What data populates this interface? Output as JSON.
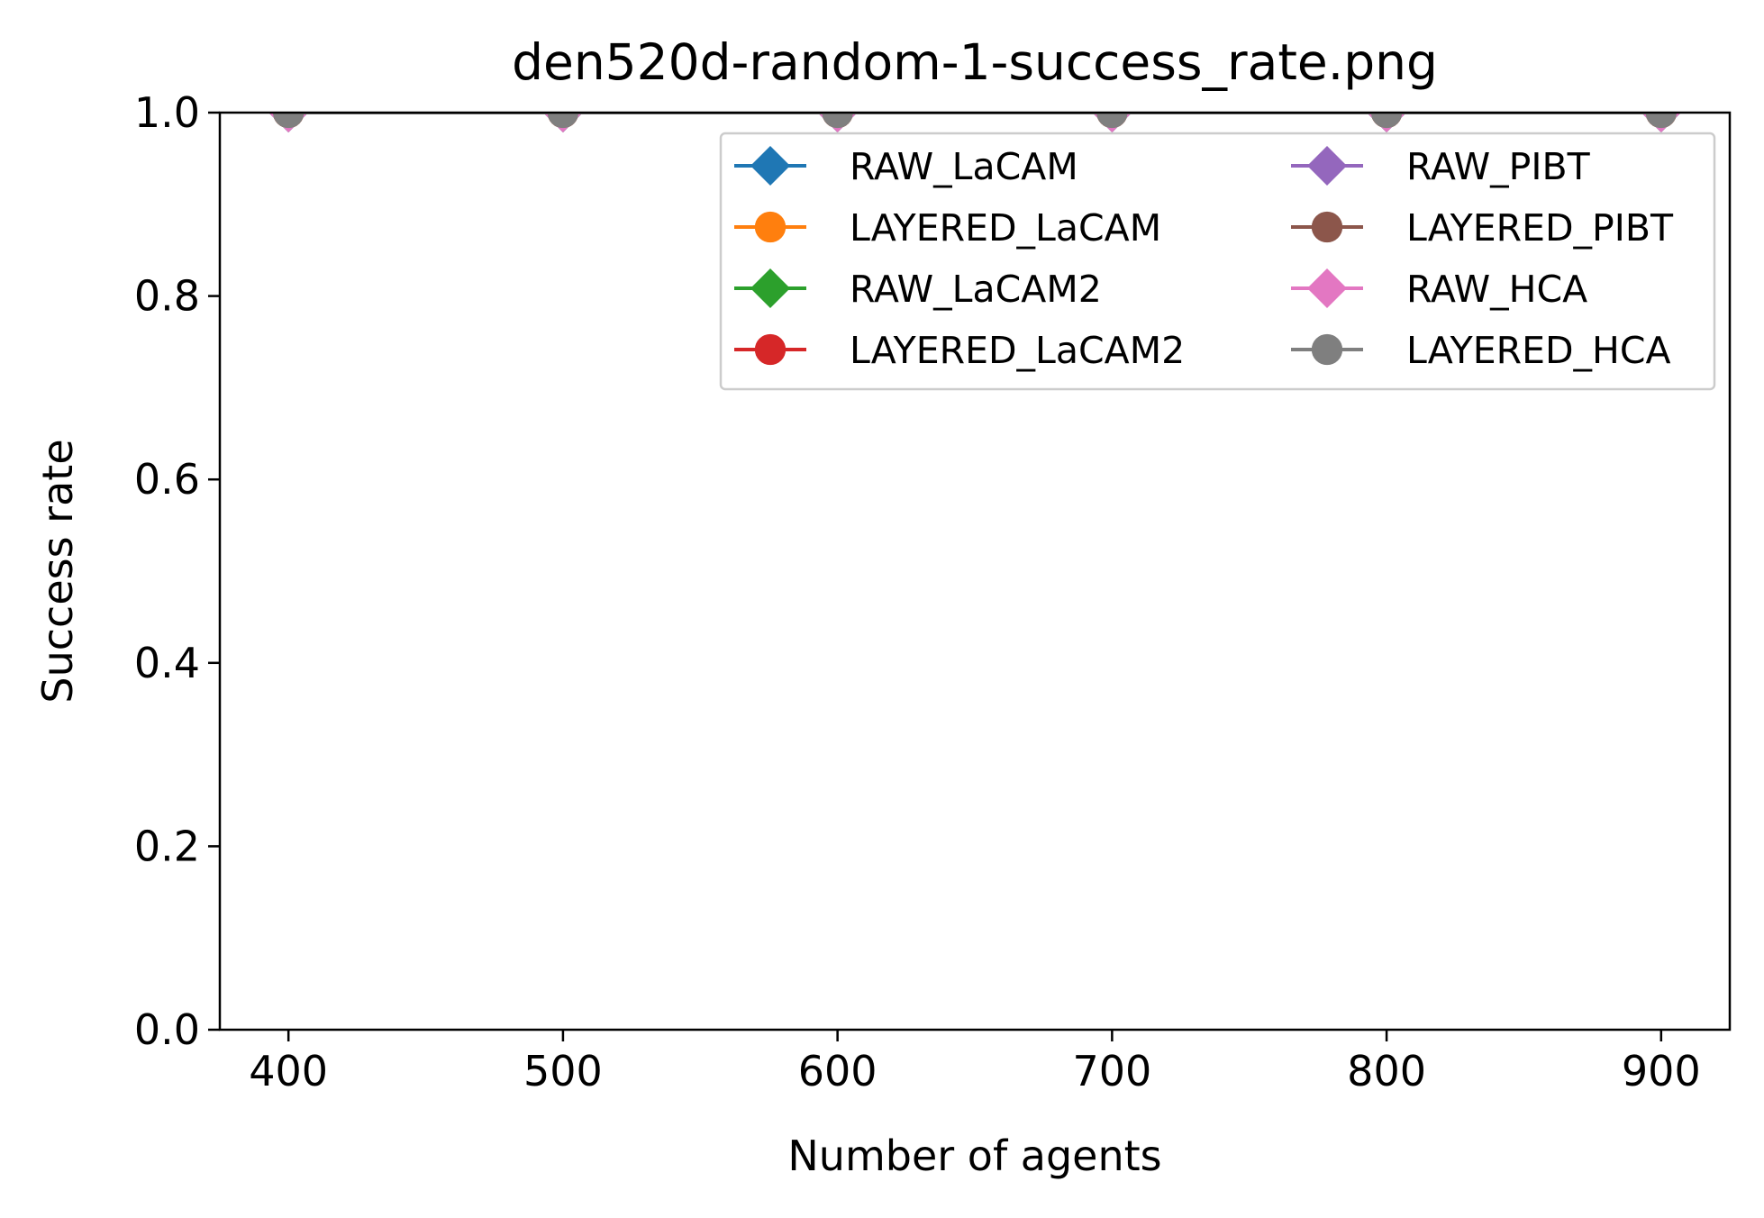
{
  "chart_data": {
    "type": "line",
    "title": "den520d-random-1-success_rate.png",
    "xlabel": "Number of agents",
    "ylabel": "Success rate",
    "x": [
      400,
      500,
      600,
      700,
      800,
      900
    ],
    "xlim": [
      375,
      925
    ],
    "ylim": [
      0.0,
      1.0
    ],
    "xticks": [
      400,
      500,
      600,
      700,
      800,
      900
    ],
    "yticks": [
      0.0,
      0.2,
      0.4,
      0.6,
      0.8,
      1.0
    ],
    "x_tick_labels": [
      "400",
      "500",
      "600",
      "700",
      "800",
      "900"
    ],
    "y_tick_labels": [
      "0.0",
      "0.2",
      "0.4",
      "0.6",
      "0.8",
      "1.0"
    ],
    "grid": false,
    "legend": {
      "placement": "top-right",
      "columns": 2
    },
    "series": [
      {
        "name": "RAW_LaCAM",
        "color": "#1f77b4",
        "marker": "diamond",
        "values": [
          1,
          1,
          1,
          1,
          1,
          1
        ]
      },
      {
        "name": "LAYERED_LaCAM",
        "color": "#ff7f0e",
        "marker": "circle",
        "values": [
          1,
          1,
          1,
          1,
          1,
          1
        ]
      },
      {
        "name": "RAW_LaCAM2",
        "color": "#2ca02c",
        "marker": "diamond",
        "values": [
          1,
          1,
          1,
          1,
          1,
          1
        ]
      },
      {
        "name": "LAYERED_LaCAM2",
        "color": "#d62728",
        "marker": "circle",
        "values": [
          1,
          1,
          1,
          1,
          1,
          1
        ]
      },
      {
        "name": "RAW_PIBT",
        "color": "#9467bd",
        "marker": "diamond",
        "values": [
          1,
          1,
          1,
          1,
          1,
          1
        ]
      },
      {
        "name": "LAYERED_PIBT",
        "color": "#8c564b",
        "marker": "circle",
        "values": [
          1,
          1,
          1,
          1,
          1,
          1
        ]
      },
      {
        "name": "RAW_HCA",
        "color": "#e377c2",
        "marker": "diamond",
        "values": [
          1,
          1,
          1,
          1,
          1,
          1
        ]
      },
      {
        "name": "LAYERED_HCA",
        "color": "#7f7f7f",
        "marker": "circle",
        "values": [
          1,
          1,
          1,
          1,
          1,
          1
        ]
      }
    ]
  }
}
